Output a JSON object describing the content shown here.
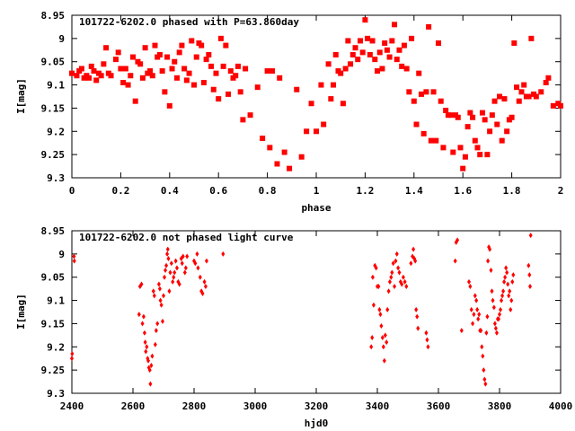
{
  "chart_data": [
    {
      "type": "scatter",
      "title": "101722-6202.0 phased with P=63.860day",
      "xlabel": "phase",
      "ylabel": "I[mag]",
      "xlim": [
        0,
        2
      ],
      "ylim": [
        9.3,
        8.95
      ],
      "y_inverted": true,
      "grid": false,
      "marker": "filled-square",
      "color": "#ff0000",
      "x_ticks": [
        "0",
        "0.2",
        "0.4",
        "0.6",
        "0.8",
        "1",
        "1.2",
        "1.4",
        "1.6",
        "1.8",
        "2"
      ],
      "x_tick_values": [
        0,
        0.2,
        0.4,
        0.6,
        0.8,
        1.0,
        1.2,
        1.4,
        1.6,
        1.8,
        2.0
      ],
      "y_ticks": [
        "8.95",
        "9",
        "9.05",
        "9.1",
        "9.15",
        "9.2",
        "9.25",
        "9.3"
      ],
      "y_tick_values": [
        8.95,
        9.0,
        9.05,
        9.1,
        9.15,
        9.2,
        9.25,
        9.3
      ],
      "points": [
        [
          0.0,
          9.075
        ],
        [
          0.02,
          9.08
        ],
        [
          0.03,
          9.07
        ],
        [
          0.04,
          9.065
        ],
        [
          0.05,
          9.085
        ],
        [
          0.06,
          9.08
        ],
        [
          0.07,
          9.085
        ],
        [
          0.08,
          9.06
        ],
        [
          0.09,
          9.07
        ],
        [
          0.1,
          9.09
        ],
        [
          0.11,
          9.075
        ],
        [
          0.12,
          9.08
        ],
        [
          0.13,
          9.055
        ],
        [
          0.14,
          9.02
        ],
        [
          0.15,
          9.075
        ],
        [
          0.16,
          9.08
        ],
        [
          0.18,
          9.045
        ],
        [
          0.19,
          9.03
        ],
        [
          0.2,
          9.065
        ],
        [
          0.21,
          9.095
        ],
        [
          0.22,
          9.065
        ],
        [
          0.23,
          9.1
        ],
        [
          0.24,
          9.08
        ],
        [
          0.25,
          9.04
        ],
        [
          0.26,
          9.135
        ],
        [
          0.27,
          9.05
        ],
        [
          0.28,
          9.055
        ],
        [
          0.29,
          9.085
        ],
        [
          0.3,
          9.02
        ],
        [
          0.31,
          9.075
        ],
        [
          0.32,
          9.07
        ],
        [
          0.33,
          9.08
        ],
        [
          0.34,
          9.015
        ],
        [
          0.35,
          9.04
        ],
        [
          0.36,
          9.035
        ],
        [
          0.37,
          9.07
        ],
        [
          0.38,
          9.115
        ],
        [
          0.39,
          9.04
        ],
        [
          0.4,
          9.145
        ],
        [
          0.41,
          9.065
        ],
        [
          0.42,
          9.05
        ],
        [
          0.43,
          9.085
        ],
        [
          0.44,
          9.03
        ],
        [
          0.45,
          9.015
        ],
        [
          0.46,
          9.065
        ],
        [
          0.47,
          9.09
        ],
        [
          0.48,
          9.075
        ],
        [
          0.49,
          9.005
        ],
        [
          0.5,
          9.1
        ],
        [
          0.51,
          9.04
        ],
        [
          0.52,
          9.01
        ],
        [
          0.53,
          9.015
        ],
        [
          0.54,
          9.095
        ],
        [
          0.55,
          9.045
        ],
        [
          0.56,
          9.035
        ],
        [
          0.57,
          9.06
        ],
        [
          0.58,
          9.11
        ],
        [
          0.59,
          9.075
        ],
        [
          0.6,
          9.13
        ],
        [
          0.61,
          9.0
        ],
        [
          0.62,
          9.06
        ],
        [
          0.63,
          9.015
        ],
        [
          0.64,
          9.12
        ],
        [
          0.65,
          9.07
        ],
        [
          0.66,
          9.085
        ],
        [
          0.67,
          9.08
        ],
        [
          0.68,
          9.06
        ],
        [
          0.69,
          9.115
        ],
        [
          0.7,
          9.175
        ],
        [
          0.71,
          9.065
        ],
        [
          0.73,
          9.165
        ],
        [
          0.76,
          9.105
        ],
        [
          0.78,
          9.215
        ],
        [
          0.8,
          9.07
        ],
        [
          0.81,
          9.235
        ],
        [
          0.82,
          9.07
        ],
        [
          0.84,
          9.27
        ],
        [
          0.85,
          9.085
        ],
        [
          0.87,
          9.245
        ],
        [
          0.89,
          9.28
        ],
        [
          0.92,
          9.11
        ],
        [
          0.94,
          9.255
        ],
        [
          0.96,
          9.2
        ],
        [
          0.98,
          9.14
        ],
        [
          1.0,
          9.2
        ],
        [
          1.02,
          9.1
        ],
        [
          1.03,
          9.185
        ],
        [
          1.05,
          9.055
        ],
        [
          1.06,
          9.13
        ],
        [
          1.07,
          9.1
        ],
        [
          1.08,
          9.035
        ],
        [
          1.09,
          9.07
        ],
        [
          1.1,
          9.075
        ],
        [
          1.11,
          9.14
        ],
        [
          1.12,
          9.065
        ],
        [
          1.13,
          9.005
        ],
        [
          1.14,
          9.055
        ],
        [
          1.15,
          9.035
        ],
        [
          1.16,
          9.02
        ],
        [
          1.17,
          9.045
        ],
        [
          1.18,
          9.005
        ],
        [
          1.19,
          9.03
        ],
        [
          1.2,
          8.96
        ],
        [
          1.21,
          9.0
        ],
        [
          1.22,
          9.035
        ],
        [
          1.23,
          9.005
        ],
        [
          1.24,
          9.045
        ],
        [
          1.25,
          9.07
        ],
        [
          1.26,
          9.03
        ],
        [
          1.27,
          9.065
        ],
        [
          1.28,
          9.01
        ],
        [
          1.29,
          9.025
        ],
        [
          1.3,
          9.04
        ],
        [
          1.31,
          9.005
        ],
        [
          1.32,
          8.97
        ],
        [
          1.33,
          9.045
        ],
        [
          1.34,
          9.025
        ],
        [
          1.35,
          9.06
        ],
        [
          1.36,
          9.015
        ],
        [
          1.37,
          9.065
        ],
        [
          1.38,
          9.115
        ],
        [
          1.39,
          9.0
        ],
        [
          1.4,
          9.135
        ],
        [
          1.41,
          9.185
        ],
        [
          1.42,
          9.075
        ],
        [
          1.43,
          9.12
        ],
        [
          1.44,
          9.205
        ],
        [
          1.45,
          9.115
        ],
        [
          1.46,
          8.975
        ],
        [
          1.47,
          9.22
        ],
        [
          1.48,
          9.115
        ],
        [
          1.49,
          9.22
        ],
        [
          1.5,
          9.01
        ],
        [
          1.51,
          9.135
        ],
        [
          1.52,
          9.235
        ],
        [
          1.53,
          9.155
        ],
        [
          1.54,
          9.165
        ],
        [
          1.55,
          9.165
        ],
        [
          1.56,
          9.245
        ],
        [
          1.57,
          9.165
        ],
        [
          1.58,
          9.17
        ],
        [
          1.59,
          9.235
        ],
        [
          1.6,
          9.28
        ],
        [
          1.61,
          9.255
        ],
        [
          1.62,
          9.19
        ],
        [
          1.63,
          9.16
        ],
        [
          1.64,
          9.17
        ],
        [
          1.65,
          9.22
        ],
        [
          1.66,
          9.235
        ],
        [
          1.67,
          9.25
        ],
        [
          1.68,
          9.16
        ],
        [
          1.69,
          9.175
        ],
        [
          1.7,
          9.25
        ],
        [
          1.71,
          9.2
        ],
        [
          1.72,
          9.165
        ],
        [
          1.73,
          9.135
        ],
        [
          1.74,
          9.185
        ],
        [
          1.75,
          9.125
        ],
        [
          1.76,
          9.22
        ],
        [
          1.77,
          9.13
        ],
        [
          1.78,
          9.2
        ],
        [
          1.79,
          9.175
        ],
        [
          1.8,
          9.17
        ],
        [
          1.81,
          9.01
        ],
        [
          1.82,
          9.105
        ],
        [
          1.83,
          9.135
        ],
        [
          1.84,
          9.115
        ],
        [
          1.85,
          9.1
        ],
        [
          1.86,
          9.125
        ],
        [
          1.87,
          9.125
        ],
        [
          1.88,
          9.0
        ],
        [
          1.89,
          9.12
        ],
        [
          1.9,
          9.125
        ],
        [
          1.92,
          9.115
        ],
        [
          1.94,
          9.095
        ],
        [
          1.95,
          9.085
        ],
        [
          1.97,
          9.145
        ],
        [
          1.99,
          9.14
        ],
        [
          2.0,
          9.145
        ]
      ]
    },
    {
      "type": "scatter",
      "title": "101722-6202.0 not phased light curve",
      "xlabel": "hjd0",
      "ylabel": "I[mag]",
      "xlim": [
        2400,
        4000
      ],
      "ylim": [
        9.3,
        8.95
      ],
      "y_inverted": true,
      "grid": false,
      "marker": "small-diamond",
      "color": "#ff0000",
      "x_ticks": [
        "2400",
        "2600",
        "2800",
        "3000",
        "3200",
        "3400",
        "3600",
        "3800",
        "4000"
      ],
      "x_tick_values": [
        2400,
        2600,
        2800,
        3000,
        3200,
        3400,
        3600,
        3800,
        4000
      ],
      "y_ticks": [
        "8.95",
        "9",
        "9.05",
        "9.1",
        "9.15",
        "9.2",
        "9.25",
        "9.3"
      ],
      "y_tick_values": [
        8.95,
        9.0,
        9.05,
        9.1,
        9.15,
        9.2,
        9.25,
        9.3
      ],
      "points": [
        [
          2400,
          9.225
        ],
        [
          2401,
          9.215
        ],
        [
          2407,
          9.005
        ],
        [
          2408,
          9.015
        ],
        [
          2620,
          9.13
        ],
        [
          2623,
          9.07
        ],
        [
          2628,
          9.065
        ],
        [
          2631,
          9.15
        ],
        [
          2635,
          9.135
        ],
        [
          2638,
          9.17
        ],
        [
          2640,
          9.19
        ],
        [
          2642,
          9.21
        ],
        [
          2645,
          9.2
        ],
        [
          2648,
          9.225
        ],
        [
          2650,
          9.23
        ],
        [
          2652,
          9.245
        ],
        [
          2655,
          9.25
        ],
        [
          2657,
          9.28
        ],
        [
          2660,
          9.24
        ],
        [
          2663,
          9.22
        ],
        [
          2667,
          9.08
        ],
        [
          2670,
          9.09
        ],
        [
          2673,
          9.195
        ],
        [
          2676,
          9.165
        ],
        [
          2680,
          9.15
        ],
        [
          2685,
          9.065
        ],
        [
          2688,
          9.075
        ],
        [
          2690,
          9.1
        ],
        [
          2693,
          9.11
        ],
        [
          2697,
          9.145
        ],
        [
          2700,
          9.09
        ],
        [
          2703,
          9.05
        ],
        [
          2706,
          9.035
        ],
        [
          2709,
          9.025
        ],
        [
          2712,
          9.0
        ],
        [
          2714,
          8.99
        ],
        [
          2716,
          9.01
        ],
        [
          2719,
          9.08
        ],
        [
          2722,
          9.04
        ],
        [
          2726,
          9.02
        ],
        [
          2730,
          9.06
        ],
        [
          2733,
          9.05
        ],
        [
          2736,
          9.04
        ],
        [
          2740,
          9.015
        ],
        [
          2744,
          9.03
        ],
        [
          2748,
          9.06
        ],
        [
          2752,
          9.065
        ],
        [
          2758,
          9.01
        ],
        [
          2761,
          9.02
        ],
        [
          2764,
          9.005
        ],
        [
          2770,
          9.04
        ],
        [
          2773,
          9.03
        ],
        [
          2777,
          9.005
        ],
        [
          2800,
          9.015
        ],
        [
          2804,
          9.02
        ],
        [
          2810,
          9.0
        ],
        [
          2813,
          9.03
        ],
        [
          2820,
          9.05
        ],
        [
          2824,
          9.08
        ],
        [
          2828,
          9.085
        ],
        [
          2834,
          9.06
        ],
        [
          2838,
          9.07
        ],
        [
          2841,
          9.015
        ],
        [
          2895,
          9.0
        ],
        [
          3380,
          9.2
        ],
        [
          3383,
          9.18
        ],
        [
          3385,
          9.05
        ],
        [
          3388,
          9.11
        ],
        [
          3392,
          9.025
        ],
        [
          3396,
          9.03
        ],
        [
          3400,
          9.07
        ],
        [
          3404,
          9.07
        ],
        [
          3407,
          9.12
        ],
        [
          3410,
          9.13
        ],
        [
          3413,
          9.155
        ],
        [
          3417,
          9.18
        ],
        [
          3420,
          9.2
        ],
        [
          3423,
          9.23
        ],
        [
          3426,
          9.175
        ],
        [
          3430,
          9.19
        ],
        [
          3433,
          9.12
        ],
        [
          3437,
          9.08
        ],
        [
          3441,
          9.06
        ],
        [
          3445,
          9.05
        ],
        [
          3448,
          9.04
        ],
        [
          3452,
          9.02
        ],
        [
          3456,
          9.07
        ],
        [
          3460,
          9.015
        ],
        [
          3464,
          9.0
        ],
        [
          3468,
          9.03
        ],
        [
          3472,
          9.04
        ],
        [
          3476,
          9.06
        ],
        [
          3480,
          9.065
        ],
        [
          3485,
          9.05
        ],
        [
          3490,
          9.06
        ],
        [
          3495,
          9.07
        ],
        [
          3510,
          9.02
        ],
        [
          3515,
          9.005
        ],
        [
          3518,
          8.99
        ],
        [
          3521,
          9.01
        ],
        [
          3524,
          9.015
        ],
        [
          3527,
          9.12
        ],
        [
          3530,
          9.135
        ],
        [
          3533,
          9.16
        ],
        [
          3560,
          9.17
        ],
        [
          3563,
          9.185
        ],
        [
          3566,
          9.2
        ],
        [
          3655,
          9.015
        ],
        [
          3658,
          8.975
        ],
        [
          3662,
          8.97
        ],
        [
          3676,
          9.165
        ],
        [
          3700,
          9.06
        ],
        [
          3704,
          9.07
        ],
        [
          3708,
          9.12
        ],
        [
          3712,
          9.15
        ],
        [
          3716,
          9.13
        ],
        [
          3720,
          9.09
        ],
        [
          3724,
          9.1
        ],
        [
          3727,
          9.12
        ],
        [
          3730,
          9.14
        ],
        [
          3733,
          9.13
        ],
        [
          3736,
          9.165
        ],
        [
          3739,
          9.165
        ],
        [
          3742,
          9.2
        ],
        [
          3745,
          9.22
        ],
        [
          3748,
          9.25
        ],
        [
          3751,
          9.27
        ],
        [
          3754,
          9.28
        ],
        [
          3757,
          9.17
        ],
        [
          3760,
          9.135
        ],
        [
          3762,
          9.015
        ],
        [
          3765,
          8.985
        ],
        [
          3768,
          8.99
        ],
        [
          3772,
          9.035
        ],
        [
          3775,
          9.08
        ],
        [
          3778,
          9.1
        ],
        [
          3782,
          9.115
        ],
        [
          3785,
          9.15
        ],
        [
          3788,
          9.16
        ],
        [
          3791,
          9.17
        ],
        [
          3794,
          9.14
        ],
        [
          3797,
          9.14
        ],
        [
          3800,
          9.13
        ],
        [
          3803,
          9.12
        ],
        [
          3806,
          9.1
        ],
        [
          3809,
          9.09
        ],
        [
          3812,
          9.08
        ],
        [
          3815,
          9.06
        ],
        [
          3818,
          9.05
        ],
        [
          3821,
          9.03
        ],
        [
          3824,
          9.04
        ],
        [
          3827,
          9.065
        ],
        [
          3830,
          9.09
        ],
        [
          3833,
          9.08
        ],
        [
          3836,
          9.12
        ],
        [
          3839,
          9.1
        ],
        [
          3842,
          9.06
        ],
        [
          3845,
          9.045
        ],
        [
          3895,
          9.025
        ],
        [
          3898,
          9.045
        ],
        [
          3900,
          9.07
        ],
        [
          3902,
          8.96
        ]
      ]
    }
  ]
}
